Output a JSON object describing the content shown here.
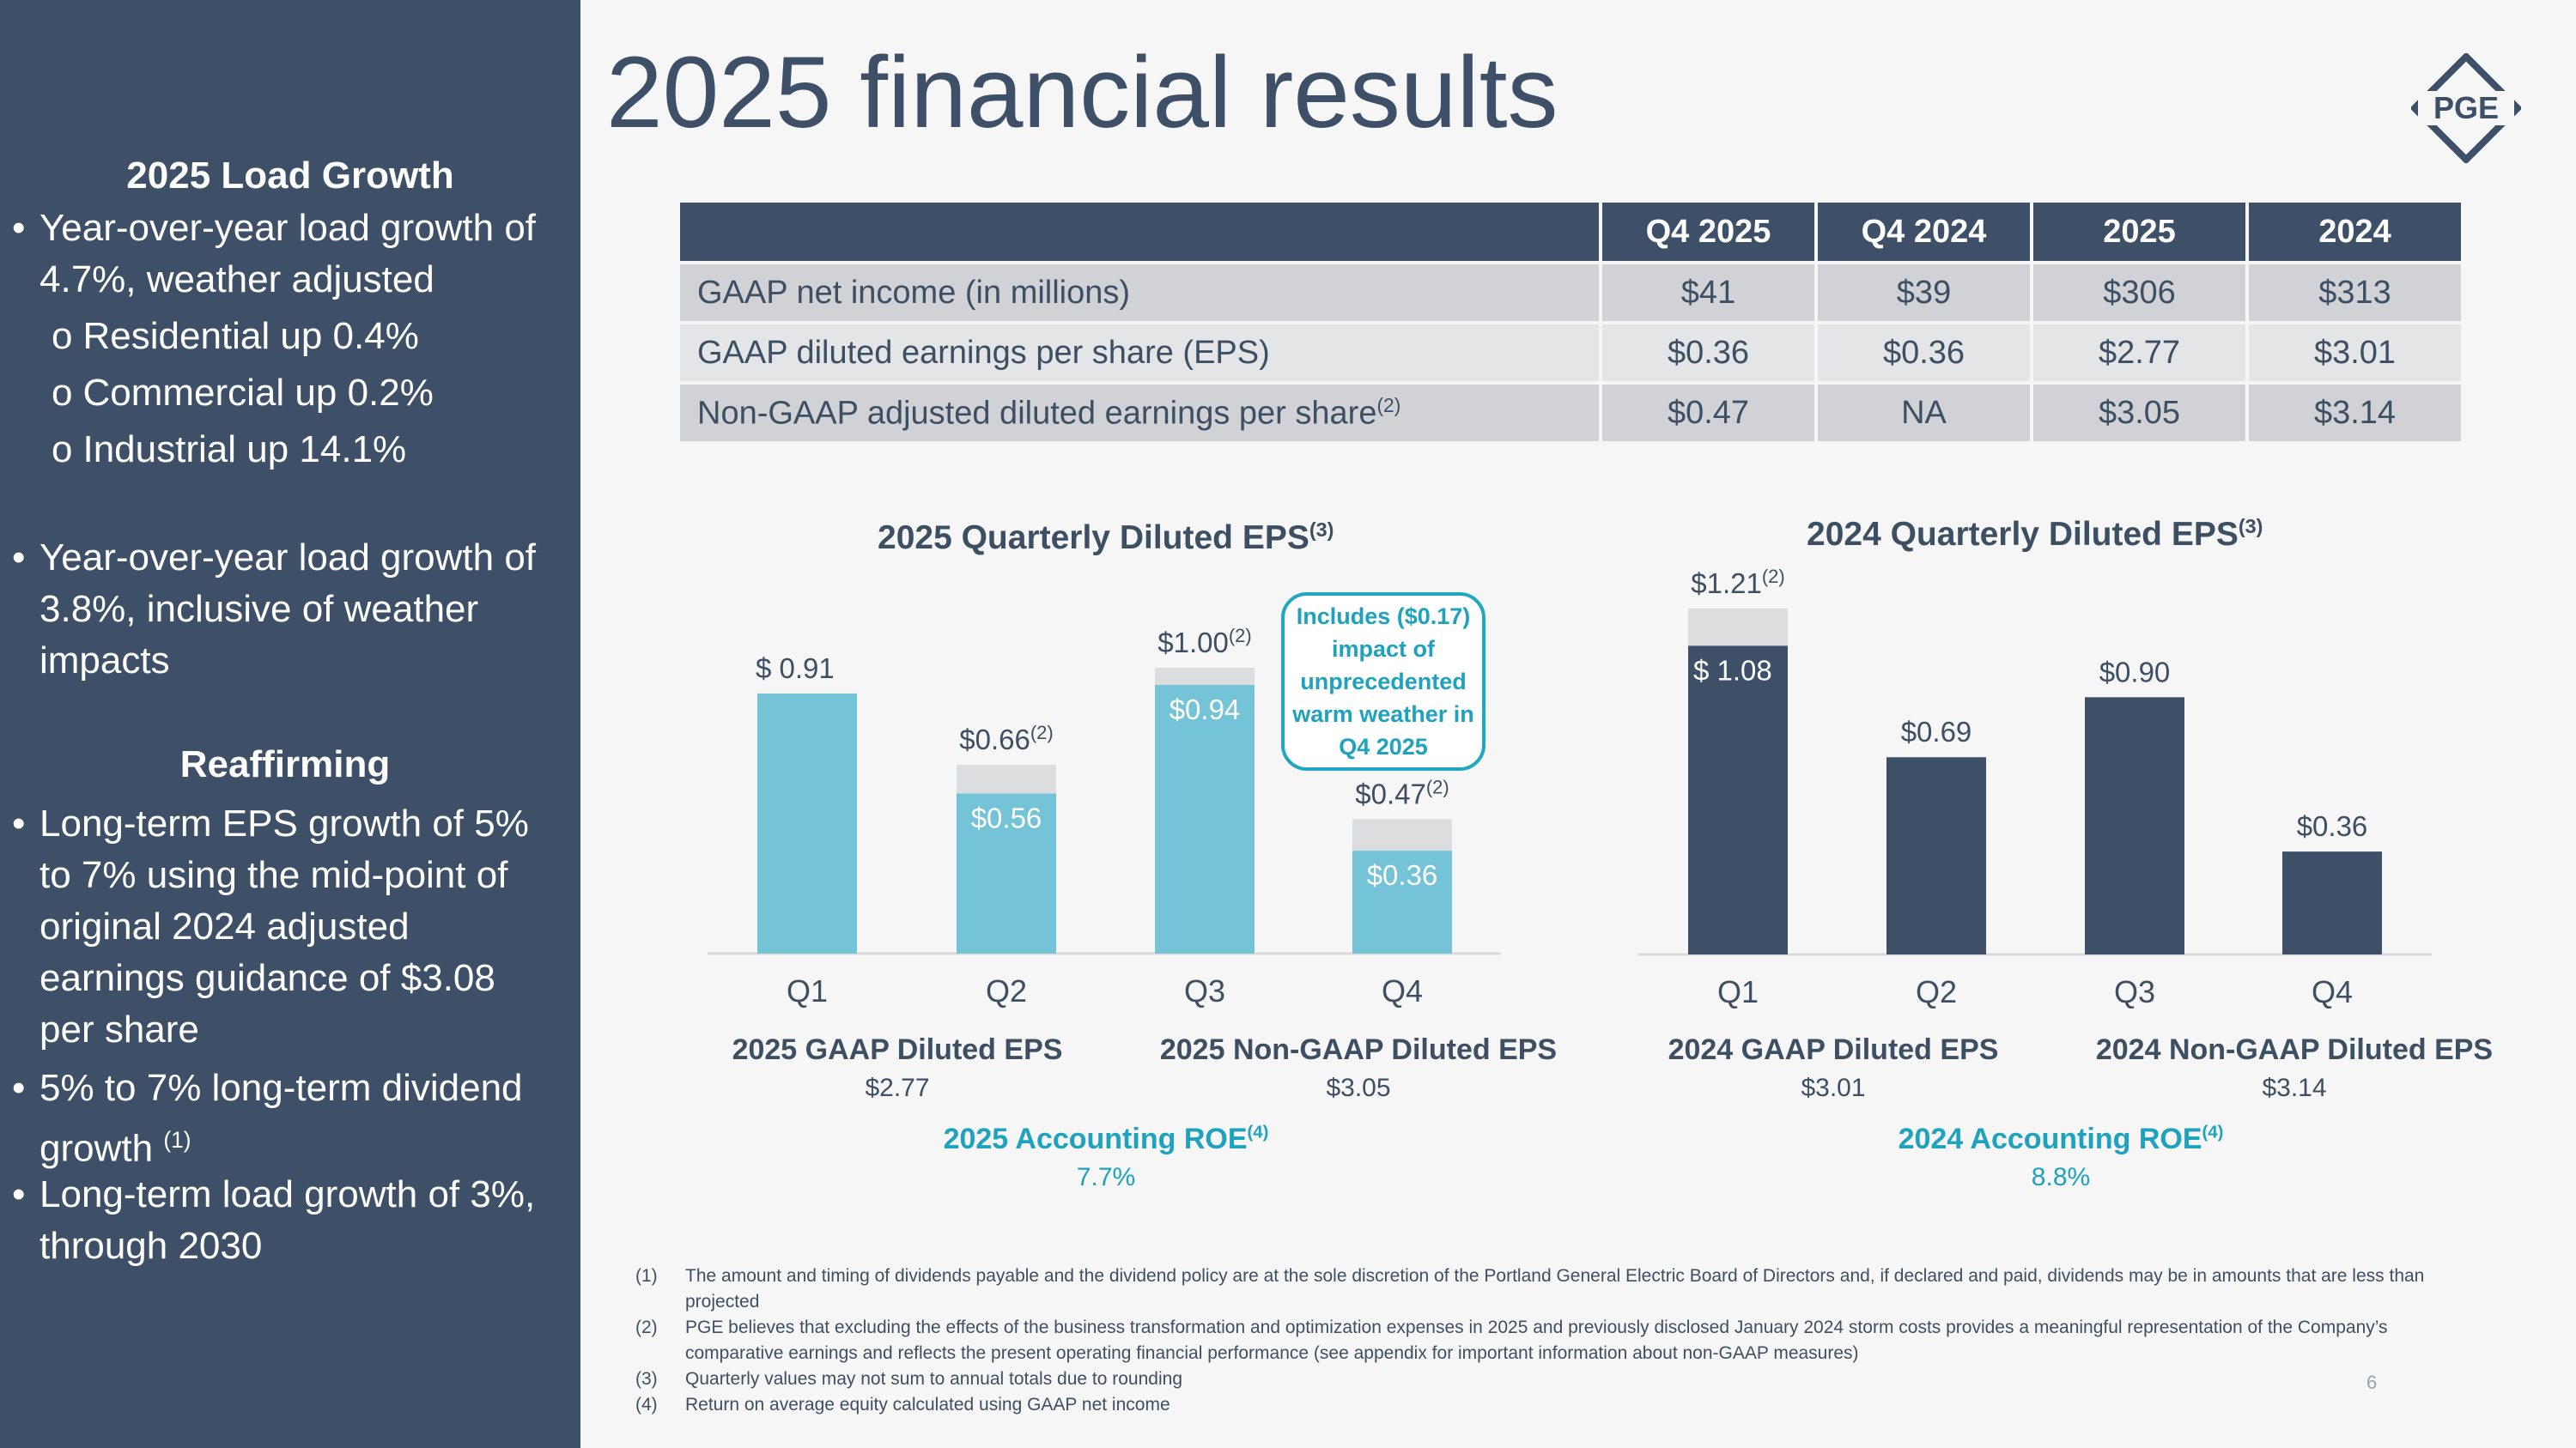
{
  "title": "2025 financial results",
  "logo": {
    "text": "PGE"
  },
  "sidebar": {
    "heading1": "2025 Load Growth",
    "bullet1_lines": [
      "Year-over-year load growth of",
      "4.7%, weather adjusted"
    ],
    "sub_bullets": [
      "Residential up 0.4%",
      "Commercial up 0.2%",
      "Industrial up 14.1%"
    ],
    "bullet2_lines": [
      "Year-over-year load growth of",
      "3.8%, inclusive of weather",
      "impacts"
    ],
    "heading2": "Reaffirming",
    "bullet3_lines": [
      "Long-term EPS growth of 5%",
      "to 7% using the mid-point of",
      "original 2024 adjusted",
      "earnings guidance of $3.08",
      "per share"
    ],
    "bullet4_lines": [
      "5% to 7% long-term dividend",
      "growth"
    ],
    "bullet4_sup": "(1)",
    "bullet5_lines": [
      "Long-term load growth of 3%,",
      "through 2030"
    ],
    "bullet_glyph": "•",
    "sub_glyph": "o"
  },
  "table": {
    "headers": [
      "",
      "Q4 2025",
      "Q4 2024",
      "2025",
      "2024"
    ],
    "rows": [
      {
        "label": "GAAP net income (in millions)",
        "sup": "",
        "values": [
          "$41",
          "$39",
          "$306",
          "$313"
        ]
      },
      {
        "label": "GAAP diluted earnings per share (EPS)",
        "sup": "",
        "values": [
          "$0.36",
          "$0.36",
          "$2.77",
          "$3.01"
        ]
      },
      {
        "label": "Non-GAAP adjusted diluted earnings per share",
        "sup": "(2)",
        "values": [
          "$0.47",
          "NA",
          "$3.05",
          "$3.14"
        ]
      }
    ]
  },
  "chart_data": [
    {
      "type": "bar",
      "title": "2025 Quarterly Diluted EPS",
      "title_sup": "(3)",
      "categories": [
        "Q1",
        "Q2",
        "Q3",
        "Q4"
      ],
      "series": [
        {
          "name": "2025 GAAP Diluted EPS",
          "values": [
            0.91,
            0.56,
            0.94,
            0.36
          ],
          "color": "#74c3d7"
        },
        {
          "name": "2025 Non-GAAP Diluted EPS",
          "values": [
            0.91,
            0.66,
            1.0,
            0.47
          ],
          "color": "#dcdddf"
        }
      ],
      "gaap_labels": [
        "$ 0.91",
        "$0.56",
        "$0.94",
        "$0.36"
      ],
      "nongaap_labels": [
        "",
        "$0.66",
        "$1.00",
        "$0.47"
      ],
      "nongaap_sup": "(2)",
      "callout": "Includes ($0.17) impact of unprecedented warm weather in Q4 2025",
      "totals": [
        {
          "label": "2025 GAAP Diluted EPS",
          "value": "$2.77"
        },
        {
          "label": "2025 Non-GAAP Diluted EPS",
          "value": "$3.05"
        }
      ],
      "roe": {
        "label": "2025 Accounting ROE",
        "sup": "(4)",
        "value": "7.7%"
      },
      "ylim": [
        0,
        1.25
      ]
    },
    {
      "type": "bar",
      "title": "2024 Quarterly Diluted EPS",
      "title_sup": "(3)",
      "categories": [
        "Q1",
        "Q2",
        "Q3",
        "Q4"
      ],
      "series": [
        {
          "name": "2024 GAAP Diluted EPS",
          "values": [
            1.08,
            0.69,
            0.9,
            0.36
          ],
          "color": "#3d5068"
        },
        {
          "name": "2024 Non-GAAP Diluted EPS",
          "values": [
            1.21,
            0.69,
            0.9,
            0.36
          ],
          "color": "#dcdddf"
        }
      ],
      "gaap_labels": [
        "$ 1.08",
        "$0.69",
        "$0.90",
        "$0.36"
      ],
      "nongaap_labels": [
        "$1.21",
        "",
        "",
        ""
      ],
      "nongaap_sup": "(2)",
      "totals": [
        {
          "label": "2024 GAAP Diluted EPS",
          "value": "$3.01"
        },
        {
          "label": "2024 Non-GAAP Diluted EPS",
          "value": "$3.14"
        }
      ],
      "roe": {
        "label": "2024 Accounting ROE",
        "sup": "(4)",
        "value": "8.8%"
      },
      "ylim": [
        0,
        1.25
      ]
    }
  ],
  "footnotes": [
    {
      "num": "(1)",
      "text": "The amount and timing of dividends payable and the dividend policy are at the sole discretion of the Portland General Electric Board of Directors and, if declared and paid, dividends may be in amounts that are less than projected"
    },
    {
      "num": "(2)",
      "text": "PGE believes that excluding the effects of the business transformation and optimization expenses in 2025 and previously disclosed January 2024 storm costs provides a meaningful representation of the Company’s comparative earnings and reflects the present operating financial performance (see appendix for important information about non-GAAP measures)"
    },
    {
      "num": "(3)",
      "text": "Quarterly values may not sum to annual totals due to rounding"
    },
    {
      "num": "(4)",
      "text": "Return on average equity calculated using GAAP net income"
    }
  ],
  "page_number": "6"
}
